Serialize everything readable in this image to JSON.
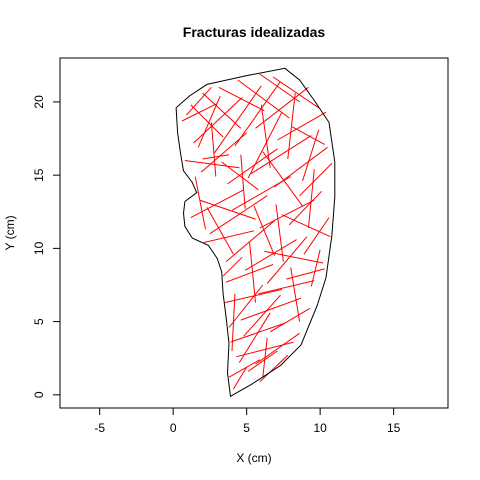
{
  "chart_data": {
    "type": "line",
    "title": "Fracturas idealizadas",
    "xlabel": "X (cm)",
    "ylabel": "Y (cm)",
    "xlim": [
      -7.7,
      18.7
    ],
    "ylim": [
      -0.9,
      23.0
    ],
    "x_ticks": [
      {
        "value": -5,
        "label": "-5"
      },
      {
        "value": 0,
        "label": "0"
      },
      {
        "value": 5,
        "label": "5"
      },
      {
        "value": 10,
        "label": "10"
      },
      {
        "value": 15,
        "label": "15"
      }
    ],
    "y_ticks": [
      {
        "value": 0,
        "label": "0"
      },
      {
        "value": 5,
        "label": "5"
      },
      {
        "value": 10,
        "label": "10"
      },
      {
        "value": 15,
        "label": "15"
      },
      {
        "value": 20,
        "label": "20"
      }
    ],
    "grid": false,
    "outline_color": "#000000",
    "fracture_color": "#ff0000",
    "outline": [
      [
        3.9,
        -0.1
      ],
      [
        3.7,
        1.5
      ],
      [
        3.8,
        3.5
      ],
      [
        3.6,
        5.3
      ],
      [
        3.4,
        6.9
      ],
      [
        3.3,
        8.4
      ],
      [
        3.0,
        9.3
      ],
      [
        2.4,
        10.2
      ],
      [
        1.3,
        10.7
      ],
      [
        0.8,
        11.5
      ],
      [
        0.7,
        12.4
      ],
      [
        0.8,
        13.2
      ],
      [
        1.6,
        13.8
      ],
      [
        1.3,
        14.5
      ],
      [
        0.7,
        15.3
      ],
      [
        0.5,
        16.5
      ],
      [
        0.3,
        17.9
      ],
      [
        0.2,
        19.6
      ],
      [
        1.1,
        20.4
      ],
      [
        2.3,
        21.2
      ],
      [
        5.0,
        21.8
      ],
      [
        7.6,
        22.3
      ],
      [
        8.6,
        21.5
      ],
      [
        9.6,
        20.1
      ],
      [
        10.6,
        18.6
      ],
      [
        11.0,
        15.9
      ],
      [
        11.0,
        13.5
      ],
      [
        10.8,
        10.9
      ],
      [
        10.4,
        8.0
      ],
      [
        9.8,
        6.1
      ],
      [
        8.7,
        3.4
      ],
      [
        7.3,
        2.0
      ],
      [
        5.3,
        0.7
      ],
      [
        3.9,
        -0.1
      ]
    ],
    "fractures": [
      [
        [
          1.2,
          19.8
        ],
        [
          3.4,
          17.6
        ]
      ],
      [
        [
          2.0,
          20.6
        ],
        [
          4.6,
          18.2
        ]
      ],
      [
        [
          3.1,
          21.0
        ],
        [
          6.2,
          19.4
        ]
      ],
      [
        [
          4.4,
          21.5
        ],
        [
          7.9,
          18.9
        ]
      ],
      [
        [
          5.9,
          21.9
        ],
        [
          8.6,
          20.0
        ]
      ],
      [
        [
          6.8,
          21.7
        ],
        [
          9.9,
          19.6
        ]
      ],
      [
        [
          0.6,
          18.7
        ],
        [
          3.0,
          19.9
        ]
      ],
      [
        [
          1.4,
          17.2
        ],
        [
          4.7,
          20.3
        ]
      ],
      [
        [
          2.8,
          16.5
        ],
        [
          6.0,
          21.1
        ]
      ],
      [
        [
          4.2,
          17.0
        ],
        [
          7.3,
          21.4
        ]
      ],
      [
        [
          5.6,
          18.2
        ],
        [
          9.2,
          21.0
        ]
      ],
      [
        [
          7.1,
          17.4
        ],
        [
          10.4,
          19.3
        ]
      ],
      [
        [
          0.8,
          16.0
        ],
        [
          4.5,
          15.5
        ]
      ],
      [
        [
          1.9,
          15.2
        ],
        [
          5.0,
          17.9
        ]
      ],
      [
        [
          3.7,
          14.4
        ],
        [
          7.1,
          16.8
        ]
      ],
      [
        [
          5.3,
          15.1
        ],
        [
          9.4,
          17.7
        ]
      ],
      [
        [
          6.9,
          14.2
        ],
        [
          10.5,
          16.9
        ]
      ],
      [
        [
          8.6,
          13.6
        ],
        [
          10.8,
          15.8
        ]
      ],
      [
        [
          1.8,
          13.3
        ],
        [
          5.6,
          12.0
        ]
      ],
      [
        [
          1.2,
          12.1
        ],
        [
          4.8,
          14.0
        ]
      ],
      [
        [
          2.5,
          11.0
        ],
        [
          6.4,
          13.6
        ]
      ],
      [
        [
          4.0,
          12.6
        ],
        [
          8.0,
          14.9
        ]
      ],
      [
        [
          5.9,
          11.4
        ],
        [
          9.6,
          13.3
        ]
      ],
      [
        [
          7.4,
          12.3
        ],
        [
          10.7,
          10.8
        ]
      ],
      [
        [
          2.1,
          10.4
        ],
        [
          5.5,
          11.2
        ]
      ],
      [
        [
          3.6,
          9.1
        ],
        [
          6.9,
          11.9
        ]
      ],
      [
        [
          4.9,
          8.5
        ],
        [
          8.4,
          10.6
        ]
      ],
      [
        [
          6.2,
          9.8
        ],
        [
          10.2,
          9.0
        ]
      ],
      [
        [
          7.7,
          7.9
        ],
        [
          10.3,
          8.6
        ]
      ],
      [
        [
          8.9,
          9.6
        ],
        [
          10.6,
          12.1
        ]
      ],
      [
        [
          3.6,
          7.7
        ],
        [
          6.8,
          8.9
        ]
      ],
      [
        [
          3.5,
          6.3
        ],
        [
          7.4,
          7.2
        ]
      ],
      [
        [
          4.6,
          5.1
        ],
        [
          8.7,
          6.6
        ]
      ],
      [
        [
          5.8,
          6.9
        ],
        [
          9.6,
          7.8
        ]
      ],
      [
        [
          3.8,
          4.6
        ],
        [
          6.1,
          7.5
        ]
      ],
      [
        [
          6.6,
          4.3
        ],
        [
          9.3,
          5.9
        ]
      ],
      [
        [
          3.9,
          3.6
        ],
        [
          7.6,
          4.9
        ]
      ],
      [
        [
          4.3,
          2.6
        ],
        [
          8.2,
          3.6
        ]
      ],
      [
        [
          5.1,
          1.6
        ],
        [
          7.1,
          3.0
        ]
      ],
      [
        [
          3.8,
          1.2
        ],
        [
          5.9,
          2.4
        ]
      ],
      [
        [
          4.1,
          0.4
        ],
        [
          5.0,
          1.9
        ]
      ],
      [
        [
          4.5,
          2.2
        ],
        [
          6.6,
          5.6
        ]
      ],
      [
        [
          6.0,
          19.8
        ],
        [
          6.6,
          15.5
        ]
      ],
      [
        [
          8.3,
          20.6
        ],
        [
          7.8,
          16.1
        ]
      ],
      [
        [
          2.6,
          18.6
        ],
        [
          2.9,
          14.9
        ]
      ],
      [
        [
          4.6,
          16.4
        ],
        [
          4.9,
          12.7
        ]
      ],
      [
        [
          7.0,
          13.0
        ],
        [
          7.5,
          9.1
        ]
      ],
      [
        [
          9.6,
          15.4
        ],
        [
          9.2,
          11.4
        ]
      ],
      [
        [
          5.2,
          10.4
        ],
        [
          5.6,
          6.3
        ]
      ],
      [
        [
          8.0,
          8.7
        ],
        [
          8.6,
          5.0
        ]
      ],
      [
        [
          4.2,
          6.9
        ],
        [
          4.0,
          3.0
        ]
      ],
      [
        [
          6.4,
          3.9
        ],
        [
          6.1,
          1.2
        ]
      ],
      [
        [
          9.9,
          18.1
        ],
        [
          8.8,
          14.6
        ]
      ],
      [
        [
          1.5,
          14.9
        ],
        [
          2.2,
          11.3
        ]
      ],
      [
        [
          3.2,
          20.4
        ],
        [
          1.7,
          16.9
        ]
      ],
      [
        [
          7.4,
          19.3
        ],
        [
          5.1,
          14.8
        ]
      ],
      [
        [
          10.1,
          13.9
        ],
        [
          7.9,
          11.6
        ]
      ],
      [
        [
          9.1,
          10.8
        ],
        [
          6.4,
          7.6
        ]
      ],
      [
        [
          7.3,
          6.8
        ],
        [
          4.8,
          4.0
        ]
      ],
      [
        [
          8.6,
          4.2
        ],
        [
          5.6,
          2.1
        ]
      ],
      [
        [
          2.3,
          12.8
        ],
        [
          4.1,
          9.6
        ]
      ],
      [
        [
          6.1,
          16.6
        ],
        [
          8.8,
          12.9
        ]
      ],
      [
        [
          0.9,
          19.1
        ],
        [
          2.6,
          21.0
        ]
      ],
      [
        [
          3.3,
          15.9
        ],
        [
          5.8,
          14.0
        ]
      ],
      [
        [
          8.1,
          18.3
        ],
        [
          10.3,
          17.1
        ]
      ],
      [
        [
          5.5,
          12.9
        ],
        [
          6.9,
          9.5
        ]
      ],
      [
        [
          9.4,
          7.4
        ],
        [
          10.0,
          9.9
        ]
      ],
      [
        [
          4.7,
          9.4
        ],
        [
          3.4,
          8.1
        ]
      ],
      [
        [
          7.8,
          2.7
        ],
        [
          5.9,
          0.9
        ]
      ],
      [
        [
          2.0,
          16.1
        ],
        [
          3.8,
          16.4
        ]
      ]
    ]
  }
}
